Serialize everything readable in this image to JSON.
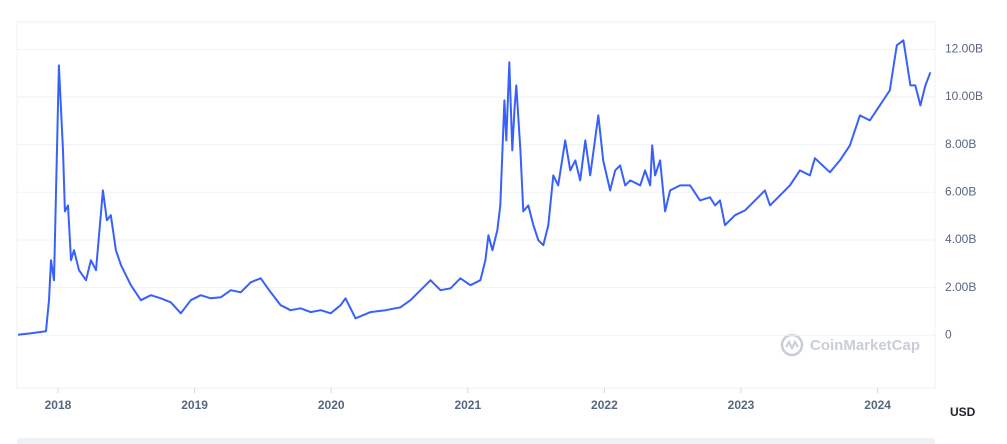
{
  "chart_data": {
    "type": "line",
    "x": [
      2017.708,
      2017.803,
      2017.912,
      2017.934,
      2017.949,
      2017.971,
      2018.007,
      2018.037,
      2018.051,
      2018.073,
      2018.095,
      2018.117,
      2018.154,
      2018.205,
      2018.241,
      2018.278,
      2018.329,
      2018.358,
      2018.387,
      2018.424,
      2018.461,
      2018.534,
      2018.607,
      2018.68,
      2018.753,
      2018.826,
      2018.899,
      2018.972,
      2019.045,
      2019.118,
      2019.192,
      2019.265,
      2019.338,
      2019.411,
      2019.484,
      2019.557,
      2019.63,
      2019.703,
      2019.776,
      2019.849,
      2019.923,
      2019.996,
      2020.069,
      2020.105,
      2020.178,
      2020.288,
      2020.398,
      2020.507,
      2020.58,
      2020.654,
      2020.727,
      2020.8,
      2020.873,
      2020.946,
      2021.019,
      2021.092,
      2021.129,
      2021.151,
      2021.18,
      2021.216,
      2021.238,
      2021.268,
      2021.282,
      2021.304,
      2021.326,
      2021.341,
      2021.355,
      2021.385,
      2021.406,
      2021.443,
      2021.48,
      2021.516,
      2021.553,
      2021.589,
      2021.626,
      2021.662,
      2021.713,
      2021.75,
      2021.787,
      2021.823,
      2021.86,
      2021.896,
      2021.955,
      2021.991,
      2022.042,
      2022.079,
      2022.115,
      2022.152,
      2022.189,
      2022.262,
      2022.298,
      2022.335,
      2022.35,
      2022.371,
      2022.408,
      2022.444,
      2022.481,
      2022.554,
      2022.627,
      2022.7,
      2022.773,
      2022.81,
      2022.846,
      2022.883,
      2022.956,
      2023.029,
      2023.139,
      2023.175,
      2023.212,
      2023.285,
      2023.358,
      2023.431,
      2023.504,
      2023.541,
      2023.651,
      2023.724,
      2023.797,
      2023.87,
      2023.943,
      2024.016,
      2024.089,
      2024.14,
      2024.189,
      2024.24,
      2024.276,
      2024.313,
      2024.35,
      2024.386
    ],
    "values": [
      0.02,
      0.08,
      0.17,
      1.47,
      3.15,
      2.31,
      11.33,
      7.76,
      5.2,
      5.45,
      3.15,
      3.57,
      2.73,
      2.31,
      3.15,
      2.73,
      6.08,
      4.83,
      5.04,
      3.57,
      2.94,
      2.1,
      1.47,
      1.68,
      1.55,
      1.38,
      0.92,
      1.47,
      1.68,
      1.55,
      1.59,
      1.89,
      1.8,
      2.22,
      2.39,
      1.8,
      1.26,
      1.05,
      1.13,
      0.97,
      1.05,
      0.92,
      1.26,
      1.55,
      0.71,
      0.97,
      1.05,
      1.17,
      1.47,
      1.89,
      2.31,
      1.89,
      1.97,
      2.39,
      2.1,
      2.31,
      3.15,
      4.2,
      3.57,
      4.41,
      5.45,
      9.86,
      8.18,
      11.46,
      7.76,
      9.44,
      10.49,
      7.76,
      5.2,
      5.45,
      4.62,
      3.99,
      3.78,
      4.62,
      6.71,
      6.29,
      8.18,
      6.92,
      7.34,
      6.5,
      8.18,
      6.71,
      9.23,
      7.34,
      6.08,
      6.92,
      7.13,
      6.29,
      6.5,
      6.29,
      6.92,
      6.29,
      7.97,
      6.71,
      7.34,
      5.2,
      6.08,
      6.29,
      6.29,
      5.66,
      5.79,
      5.45,
      5.66,
      4.62,
      5.04,
      5.24,
      5.87,
      6.08,
      5.45,
      5.87,
      6.29,
      6.92,
      6.71,
      7.43,
      6.84,
      7.34,
      7.97,
      9.23,
      9.02,
      9.65,
      10.28,
      12.17,
      12.38,
      10.49,
      10.49,
      9.65,
      10.49,
      11.04
    ],
    "color": "#3861fb",
    "xlim": [
      2017.7,
      2024.42
    ],
    "xticks": [
      2018,
      2019,
      2020,
      2021,
      2022,
      2023,
      2024
    ],
    "ylim": [
      -2.3,
      13.15
    ],
    "yticks": [
      0,
      {
        "value": 2,
        "label": "2.00B"
      },
      {
        "value": 4,
        "label": "4.00B"
      },
      {
        "value": 6,
        "label": "6.00B"
      },
      {
        "value": 8,
        "label": "8.00B"
      },
      {
        "value": 10,
        "label": "10.00B"
      },
      {
        "value": 12,
        "label": "12.00B"
      }
    ],
    "grid": true,
    "currency": "USD",
    "watermark": "CoinMarketCap"
  }
}
